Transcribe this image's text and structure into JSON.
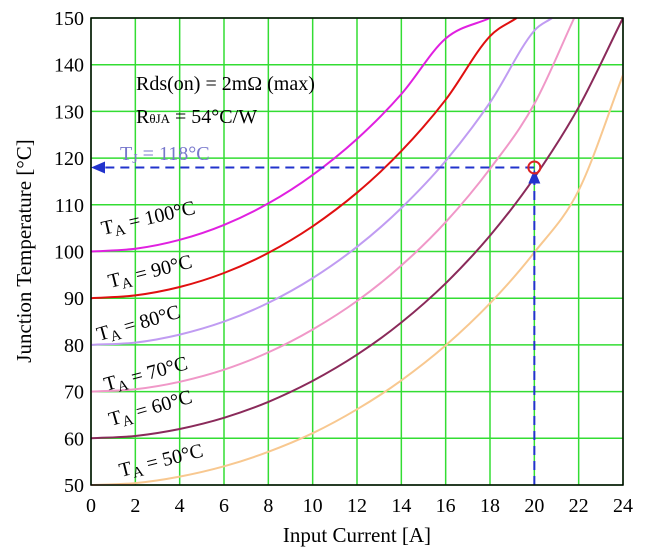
{
  "chart_data": {
    "type": "line",
    "xlabel": "Input Current [A]",
    "ylabel": "Junction Temperature [°C]",
    "xlim": [
      0,
      24
    ],
    "ylim": [
      50,
      150
    ],
    "x_ticks": [
      0,
      2,
      4,
      6,
      8,
      10,
      12,
      14,
      16,
      18,
      20,
      22,
      24
    ],
    "y_ticks": [
      50,
      60,
      70,
      80,
      90,
      100,
      110,
      120,
      130,
      140,
      150
    ],
    "grid": true,
    "grid_color": "#33dd33",
    "annotations": {
      "rds": "Rds(on) = 2mΩ (max)",
      "rth_main": "R",
      "rth_sub": "θJA",
      "rth_value": " = 54°C/W",
      "tj_main": "T",
      "tj_sub": "J",
      "tj_value": " = 118°C",
      "tj_color": "#7777cc",
      "marker_point": {
        "x": 20,
        "y": 118
      },
      "marker_color": "#dd2222",
      "guide_color": "#2233cc"
    },
    "series": [
      {
        "label_main": "T",
        "label_sub": "A",
        "label_value": " = 100°C",
        "color": "#e020e0",
        "x": [
          0,
          2,
          4,
          6,
          8,
          10,
          12,
          14,
          16,
          18
        ],
        "y": [
          100,
          100.6,
          102.5,
          105.7,
          110.3,
          116.4,
          124.1,
          133.7,
          145.6,
          150
        ]
      },
      {
        "label_main": "T",
        "label_sub": "A",
        "label_value": " = 90°C",
        "color": "#e01010",
        "x": [
          0,
          2,
          4,
          6,
          8,
          10,
          12,
          14,
          16,
          18,
          19.2
        ],
        "y": [
          90,
          90.6,
          92.4,
          95.4,
          99.7,
          105.4,
          112.6,
          121.5,
          132.5,
          146.1,
          150
        ]
      },
      {
        "label_main": "T",
        "label_sub": "A",
        "label_value": " = 80°C",
        "color": "#c09cf2",
        "x": [
          0,
          2,
          4,
          6,
          8,
          10,
          12,
          14,
          16,
          18,
          20,
          20.8
        ],
        "y": [
          80,
          80.5,
          82.2,
          85,
          89,
          94.3,
          101,
          109.3,
          119.4,
          131.9,
          147.3,
          150
        ]
      },
      {
        "label_main": "T",
        "label_sub": "A",
        "label_value": " = 70°C",
        "color": "#f098c8",
        "x": [
          0,
          2,
          4,
          6,
          8,
          10,
          12,
          14,
          16,
          18,
          20,
          21.8
        ],
        "y": [
          70,
          70.5,
          72.1,
          74.7,
          78.4,
          83.3,
          89.4,
          97,
          106.3,
          117.7,
          131.6,
          150
        ]
      },
      {
        "label_main": "T",
        "label_sub": "A",
        "label_value": "  = 60°C",
        "color": "#8a2a5a",
        "x": [
          0,
          2,
          4,
          6,
          8,
          10,
          12,
          14,
          16,
          18,
          20,
          22,
          24
        ],
        "y": [
          60,
          60.5,
          62,
          64.4,
          67.8,
          72.3,
          77.9,
          84.8,
          93.2,
          103.4,
          115.8,
          130.9,
          150
        ]
      },
      {
        "label_main": "T",
        "label_sub": "A",
        "label_value": " = 50°C",
        "color": "#f8c890",
        "x": [
          0,
          2,
          4,
          6,
          8,
          10,
          12,
          14,
          16,
          18,
          20,
          22,
          24
        ],
        "y": [
          50,
          50.4,
          51.8,
          54,
          57.1,
          61.1,
          66.2,
          72.4,
          79.9,
          88.9,
          99.8,
          113.1,
          137.8
        ]
      }
    ]
  }
}
